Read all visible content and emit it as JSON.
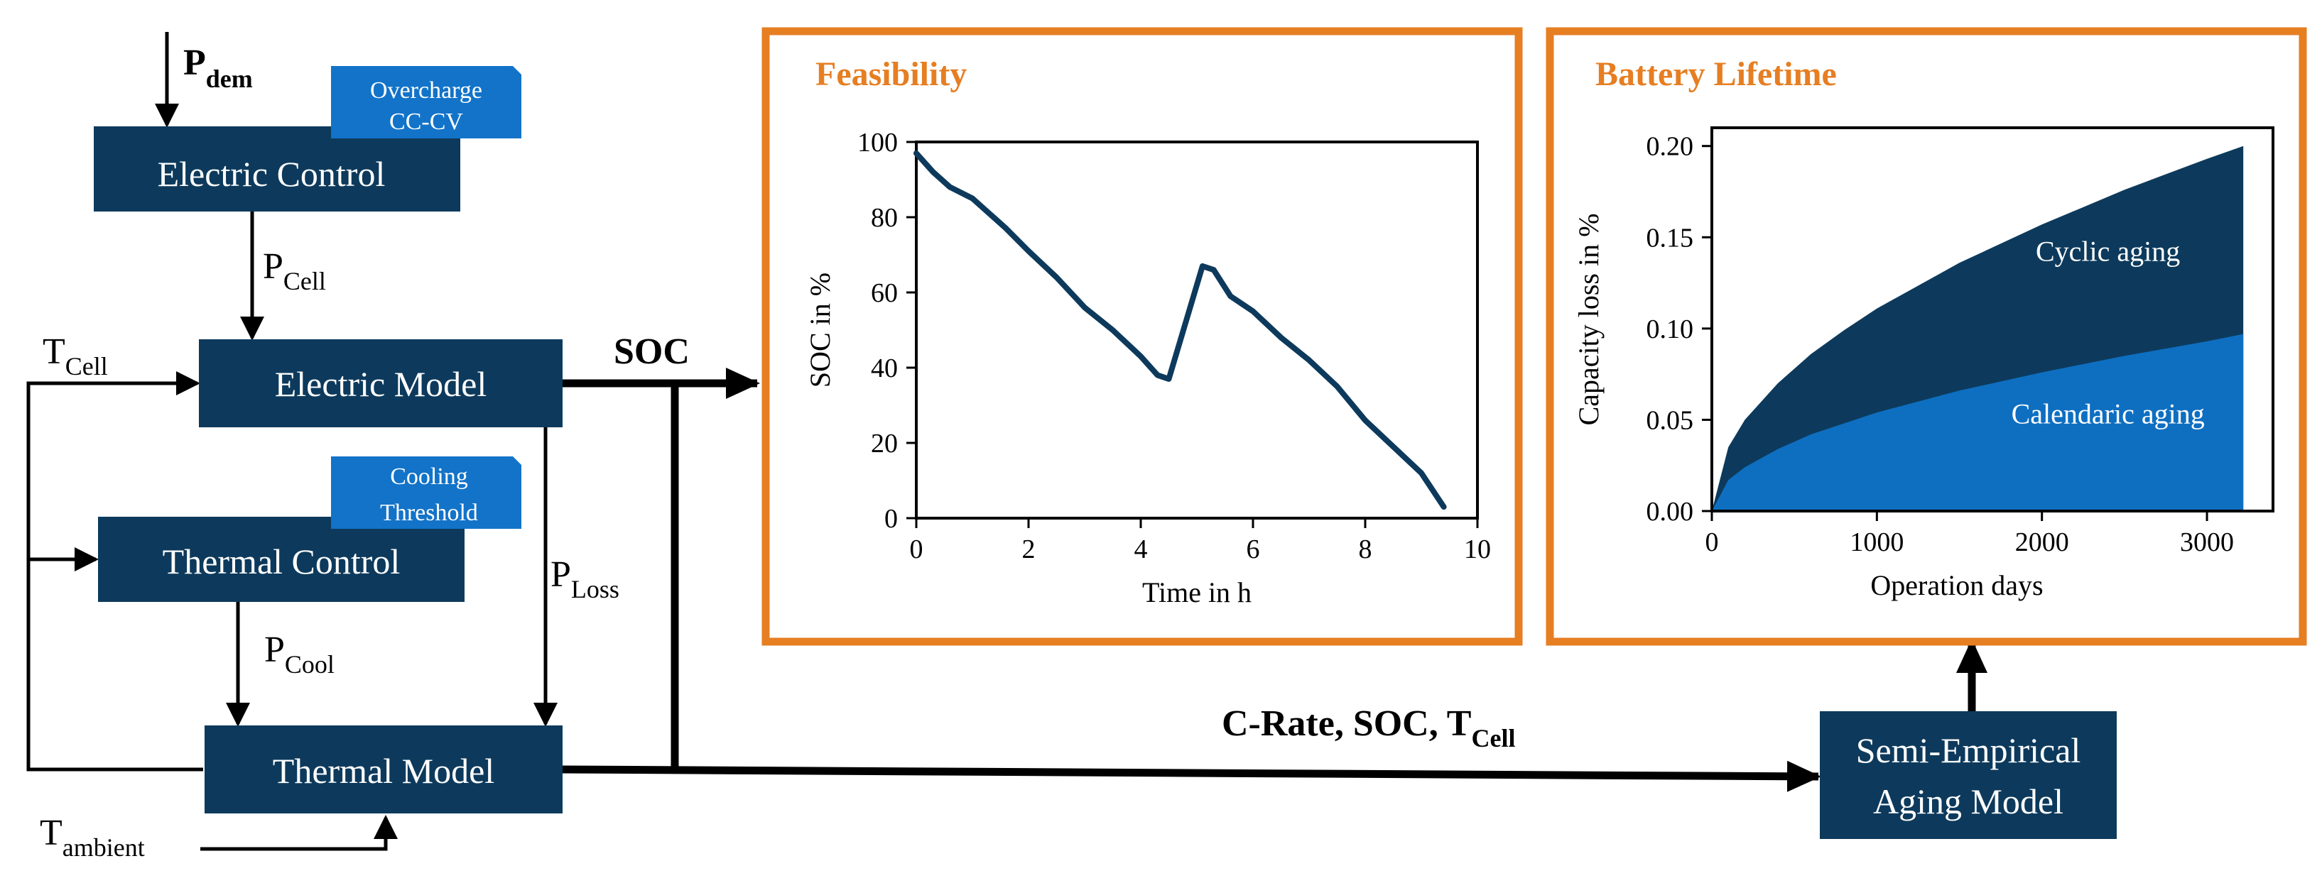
{
  "colors": {
    "block": "#0d3a5c",
    "tag": "#1273c9",
    "panel_border": "#e67e22",
    "soc_line": "#0d3a5c",
    "cyclic": "#0d3a5c",
    "calendaric": "#0e6fc1"
  },
  "blocks": {
    "electric_control": "Electric Control",
    "electric_model": "Electric Model",
    "thermal_control": "Thermal Control",
    "thermal_model": "Thermal Model",
    "aging_model_line1": "Semi-Empirical",
    "aging_model_line2": "Aging Model"
  },
  "tags": {
    "overcharge_line1": "Overcharge",
    "overcharge_line2": "CC-CV",
    "cooling_line1": "Cooling",
    "cooling_line2": "Threshold"
  },
  "signals": {
    "p_dem": "P",
    "p_dem_sub": "dem",
    "p_cell": "P",
    "p_cell_sub": "Cell",
    "t_cell": "T",
    "t_cell_sub": "Cell",
    "p_cool": "P",
    "p_cool_sub": "Cool",
    "p_loss": "P",
    "p_loss_sub": "Loss",
    "t_ambient": "T",
    "t_ambient_sub": "ambient",
    "soc": "SOC",
    "aging_inputs": "C-Rate, SOC, T",
    "aging_inputs_sub": "Cell"
  },
  "chart_data": [
    {
      "type": "line",
      "panel_title": "Feasibility",
      "xlabel": "Time in h",
      "ylabel": "SOC in %",
      "xlim": [
        0,
        10
      ],
      "ylim": [
        0,
        100
      ],
      "xticks": [
        "0",
        "2",
        "4",
        "6",
        "8",
        "10"
      ],
      "yticks": [
        "0",
        "20",
        "40",
        "60",
        "80",
        "100"
      ],
      "series": [
        {
          "name": "SOC",
          "x": [
            0,
            0.3,
            0.6,
            1.0,
            1.6,
            2.0,
            2.5,
            3.0,
            3.5,
            4.0,
            4.3,
            4.5,
            5.1,
            5.3,
            5.6,
            6.0,
            6.5,
            7.0,
            7.5,
            8.0,
            8.5,
            9.0,
            9.4
          ],
          "y": [
            97,
            92,
            88,
            85,
            77,
            71,
            64,
            56,
            50,
            43,
            38,
            37,
            67,
            66,
            59,
            55,
            48,
            42,
            35,
            26,
            19,
            12,
            3
          ]
        }
      ]
    },
    {
      "type": "area",
      "panel_title": "Battery Lifetime",
      "xlabel": "Operation days",
      "ylabel": "Capacity loss in %",
      "xlim": [
        0,
        3400
      ],
      "ylim": [
        0,
        0.21
      ],
      "xticks": [
        "0",
        "1000",
        "2000",
        "3000"
      ],
      "yticks": [
        "0.00",
        "0.05",
        "0.10",
        "0.15",
        "0.20"
      ],
      "series": [
        {
          "name": "Calendaric aging",
          "x": [
            0,
            100,
            200,
            400,
            600,
            800,
            1000,
            1500,
            2000,
            2500,
            3000,
            3220
          ],
          "y": [
            0.0,
            0.017,
            0.024,
            0.034,
            0.042,
            0.048,
            0.054,
            0.066,
            0.076,
            0.085,
            0.093,
            0.097
          ]
        },
        {
          "name": "Cyclic aging",
          "x": [
            0,
            100,
            200,
            400,
            600,
            800,
            1000,
            1500,
            2000,
            2500,
            3000,
            3220
          ],
          "y": [
            0.0,
            0.035,
            0.05,
            0.07,
            0.086,
            0.099,
            0.111,
            0.136,
            0.157,
            0.176,
            0.193,
            0.2
          ]
        }
      ],
      "area_labels": [
        "Cyclic aging",
        "Calendaric aging"
      ]
    }
  ]
}
